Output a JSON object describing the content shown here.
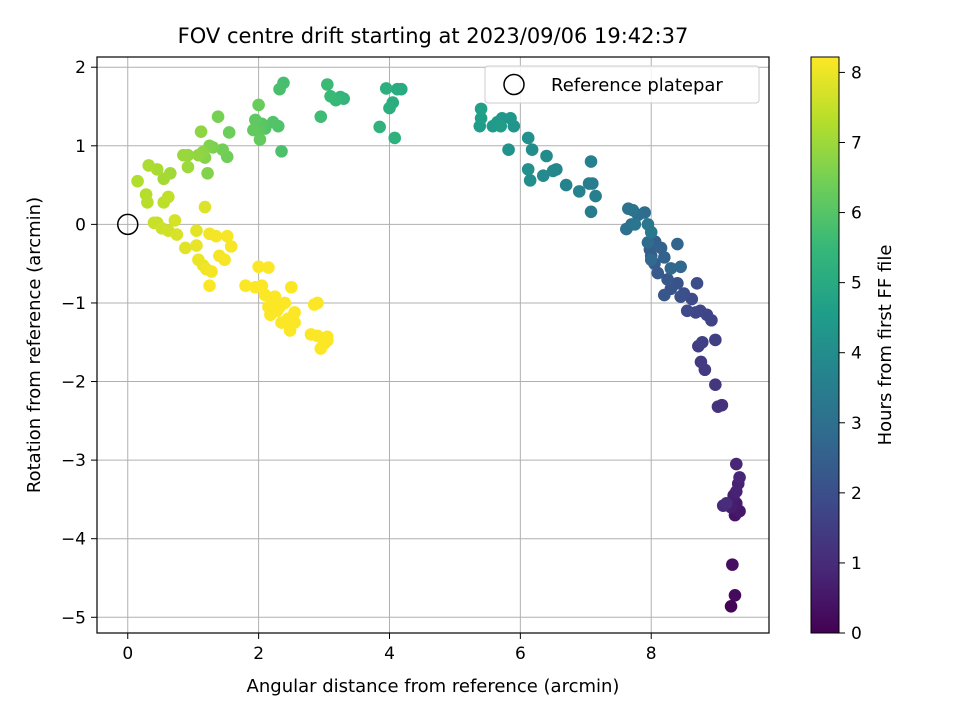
{
  "chart_data": {
    "type": "scatter",
    "title": "FOV centre drift starting at 2023/09/06 19:42:37",
    "xlabel": "Angular distance from reference (arcmin)",
    "ylabel": "Rotation from reference (arcmin)",
    "xlim": [
      -0.47,
      9.8
    ],
    "ylim": [
      -5.2,
      2.13
    ],
    "xticks": [
      0,
      2,
      4,
      6,
      8
    ],
    "yticks": [
      -5,
      -4,
      -3,
      -2,
      -1,
      0,
      1,
      2
    ],
    "xtick_labels": [
      "0",
      "2",
      "4",
      "6",
      "8"
    ],
    "ytick_labels": [
      "−5",
      "−4",
      "−3",
      "−2",
      "−1",
      "0",
      "1",
      "2"
    ],
    "grid": true,
    "legend": {
      "placement": "top-right",
      "entries": [
        "Reference platepar"
      ]
    },
    "reference_point": {
      "x": 0,
      "y": 0
    },
    "colorbar": {
      "label": "Hours from first FF file",
      "range": [
        0,
        8.22
      ],
      "ticks": [
        0,
        1,
        2,
        3,
        4,
        5,
        6,
        7,
        8
      ],
      "tick_labels": [
        "0",
        "1",
        "2",
        "3",
        "4",
        "5",
        "6",
        "7",
        "8"
      ],
      "colormap": "viridis"
    },
    "colormap_stops": [
      "#440154",
      "#482878",
      "#3e4989",
      "#31688e",
      "#26828e",
      "#1f9e89",
      "#35b779",
      "#6ece58",
      "#b5de2b",
      "#fde725"
    ],
    "points": [
      [
        9.22,
        -4.86,
        0.1
      ],
      [
        9.28,
        -4.72,
        0.2
      ],
      [
        9.24,
        -4.33,
        0.3
      ],
      [
        9.28,
        -3.7,
        0.45
      ],
      [
        9.35,
        -3.65,
        0.55
      ],
      [
        9.3,
        -3.55,
        0.6
      ],
      [
        9.22,
        -3.6,
        0.65
      ],
      [
        9.26,
        -3.45,
        0.7
      ],
      [
        9.33,
        -3.3,
        0.75
      ],
      [
        9.3,
        -3.4,
        0.8
      ],
      [
        9.35,
        -3.22,
        0.85
      ],
      [
        9.3,
        -3.05,
        0.9
      ],
      [
        9.1,
        -3.58,
        1.0
      ],
      [
        9.15,
        -3.55,
        1.05
      ],
      [
        9.08,
        -2.3,
        1.15
      ],
      [
        9.02,
        -2.32,
        1.2
      ],
      [
        8.98,
        -2.04,
        1.3
      ],
      [
        8.82,
        -1.85,
        1.4
      ],
      [
        8.76,
        -1.75,
        1.45
      ],
      [
        8.72,
        -1.55,
        1.5
      ],
      [
        8.98,
        -1.47,
        1.55
      ],
      [
        8.78,
        -1.5,
        1.6
      ],
      [
        8.92,
        -1.22,
        1.65
      ],
      [
        8.85,
        -1.15,
        1.7
      ],
      [
        8.75,
        -1.1,
        1.75
      ],
      [
        8.68,
        -1.12,
        1.8
      ],
      [
        8.55,
        -1.1,
        1.85
      ],
      [
        8.62,
        -0.95,
        1.9
      ],
      [
        8.7,
        -0.75,
        1.95
      ],
      [
        8.5,
        -0.88,
        2.0
      ],
      [
        8.45,
        -0.92,
        2.05
      ],
      [
        8.4,
        -0.75,
        2.1
      ],
      [
        8.3,
        -0.82,
        2.15
      ],
      [
        8.2,
        -0.9,
        2.2
      ],
      [
        8.25,
        -0.7,
        2.25
      ],
      [
        8.1,
        -0.62,
        2.3
      ],
      [
        8.05,
        -0.5,
        2.35
      ],
      [
        8.0,
        -0.4,
        2.4
      ],
      [
        7.98,
        -0.32,
        2.45
      ],
      [
        8.06,
        -0.22,
        2.5
      ],
      [
        8.15,
        -0.3,
        2.55
      ],
      [
        8.2,
        -0.42,
        2.6
      ],
      [
        8.4,
        -0.25,
        2.65
      ],
      [
        8.45,
        -0.54,
        2.7
      ],
      [
        8.3,
        -0.56,
        2.75
      ],
      [
        8.0,
        -0.45,
        2.8
      ],
      [
        7.95,
        -0.23,
        2.85
      ],
      [
        7.9,
        0.15,
        2.9
      ],
      [
        7.8,
        0.12,
        2.95
      ],
      [
        7.7,
        0.0,
        3.0
      ],
      [
        7.62,
        -0.06,
        3.05
      ],
      [
        7.65,
        0.2,
        3.1
      ],
      [
        7.72,
        0.18,
        3.15
      ],
      [
        7.75,
        0.0,
        3.2
      ],
      [
        7.95,
        0.0,
        3.25
      ],
      [
        8.0,
        -0.1,
        3.3
      ],
      [
        7.08,
        0.16,
        3.4
      ],
      [
        7.05,
        0.52,
        3.45
      ],
      [
        7.1,
        0.52,
        3.5
      ],
      [
        7.15,
        0.36,
        3.55
      ],
      [
        7.08,
        0.8,
        3.6
      ],
      [
        6.9,
        0.42,
        3.65
      ],
      [
        6.7,
        0.5,
        3.7
      ],
      [
        6.55,
        0.7,
        3.8
      ],
      [
        6.5,
        0.68,
        3.85
      ],
      [
        6.35,
        0.62,
        3.9
      ],
      [
        6.4,
        0.87,
        3.95
      ],
      [
        6.18,
        0.95,
        4.0
      ],
      [
        6.15,
        0.56,
        4.05
      ],
      [
        6.12,
        0.7,
        4.1
      ],
      [
        6.12,
        1.1,
        4.15
      ],
      [
        5.82,
        0.95,
        4.2
      ],
      [
        5.9,
        1.25,
        4.25
      ],
      [
        5.85,
        1.35,
        4.3
      ],
      [
        5.72,
        1.35,
        4.35
      ],
      [
        5.65,
        1.3,
        4.4
      ],
      [
        5.58,
        1.25,
        4.45
      ],
      [
        5.7,
        1.25,
        4.5
      ],
      [
        5.38,
        1.25,
        4.55
      ],
      [
        5.4,
        1.35,
        4.6
      ],
      [
        5.4,
        1.47,
        4.65
      ],
      [
        4.18,
        1.72,
        5.0
      ],
      [
        4.12,
        1.72,
        5.05
      ],
      [
        4.05,
        1.55,
        5.1
      ],
      [
        4.0,
        1.48,
        5.15
      ],
      [
        3.95,
        1.73,
        5.2
      ],
      [
        4.08,
        1.1,
        5.25
      ],
      [
        3.85,
        1.24,
        5.3
      ],
      [
        3.3,
        1.6,
        5.4
      ],
      [
        3.25,
        1.62,
        5.45
      ],
      [
        3.18,
        1.58,
        5.5
      ],
      [
        3.1,
        1.63,
        5.55
      ],
      [
        3.05,
        1.78,
        5.6
      ],
      [
        2.95,
        1.37,
        5.65
      ],
      [
        2.38,
        1.8,
        5.75
      ],
      [
        2.32,
        1.72,
        5.8
      ],
      [
        2.35,
        0.93,
        5.85
      ],
      [
        2.3,
        1.25,
        5.9
      ],
      [
        2.22,
        1.3,
        5.95
      ],
      [
        2.1,
        1.22,
        6.0
      ],
      [
        2.05,
        1.28,
        6.05
      ],
      [
        2.0,
        1.2,
        6.1
      ],
      [
        1.95,
        1.33,
        6.15
      ],
      [
        1.92,
        1.2,
        6.2
      ],
      [
        2.02,
        1.08,
        6.25
      ],
      [
        2.0,
        1.52,
        6.3
      ],
      [
        1.55,
        1.17,
        6.35
      ],
      [
        1.52,
        0.86,
        6.4
      ],
      [
        1.45,
        0.95,
        6.45
      ],
      [
        1.38,
        1.37,
        6.5
      ],
      [
        1.3,
        0.98,
        6.55
      ],
      [
        1.25,
        1.0,
        6.6
      ],
      [
        1.22,
        0.65,
        6.65
      ],
      [
        1.18,
        0.85,
        6.7
      ],
      [
        1.15,
        0.92,
        6.75
      ],
      [
        1.12,
        1.18,
        6.8
      ],
      [
        1.08,
        0.88,
        6.85
      ],
      [
        0.92,
        0.88,
        6.9
      ],
      [
        0.85,
        0.88,
        6.95
      ],
      [
        0.92,
        0.73,
        7.0
      ],
      [
        0.65,
        0.65,
        7.05
      ],
      [
        0.55,
        0.58,
        7.1
      ],
      [
        0.45,
        0.7,
        7.15
      ],
      [
        0.32,
        0.75,
        7.2
      ],
      [
        0.15,
        0.55,
        7.25
      ],
      [
        0.28,
        0.38,
        7.3
      ],
      [
        0.3,
        0.28,
        7.35
      ],
      [
        0.55,
        0.28,
        7.4
      ],
      [
        0.62,
        0.35,
        7.45
      ],
      [
        0.45,
        0.02,
        7.5
      ],
      [
        0.4,
        0.02,
        7.55
      ],
      [
        0.52,
        -0.05,
        7.6
      ],
      [
        0.62,
        -0.08,
        7.65
      ],
      [
        0.72,
        0.05,
        7.7
      ],
      [
        0.75,
        -0.13,
        7.75
      ],
      [
        1.18,
        0.22,
        7.8
      ],
      [
        0.88,
        -0.3,
        7.85
      ],
      [
        1.05,
        -0.08,
        7.9
      ],
      [
        1.05,
        -0.27,
        7.95
      ],
      [
        1.08,
        -0.45,
        8.0
      ],
      [
        1.15,
        -0.52,
        8.0
      ],
      [
        1.2,
        -0.57,
        8.05
      ],
      [
        1.25,
        -0.12,
        8.05
      ],
      [
        1.28,
        -0.6,
        8.1
      ],
      [
        1.35,
        -0.15,
        8.1
      ],
      [
        1.4,
        -0.4,
        8.1
      ],
      [
        1.48,
        -0.45,
        8.15
      ],
      [
        1.52,
        -0.15,
        8.15
      ],
      [
        1.58,
        -0.28,
        8.15
      ],
      [
        1.25,
        -0.78,
        8.2
      ],
      [
        1.8,
        -0.78,
        8.2
      ],
      [
        1.95,
        -0.8,
        8.2
      ],
      [
        2.05,
        -0.78,
        8.2
      ],
      [
        2.0,
        -0.54,
        8.2
      ],
      [
        2.15,
        -0.55,
        8.2
      ],
      [
        2.1,
        -0.9,
        8.2
      ],
      [
        2.15,
        -1.05,
        8.2
      ],
      [
        2.18,
        -1.15,
        8.2
      ],
      [
        2.22,
        -1.02,
        8.2
      ],
      [
        2.25,
        -0.92,
        8.2
      ],
      [
        2.28,
        -1.1,
        8.2
      ],
      [
        2.32,
        -1.05,
        8.2
      ],
      [
        2.35,
        -1.25,
        8.2
      ],
      [
        2.4,
        -1.0,
        8.2
      ],
      [
        2.45,
        -1.2,
        8.2
      ],
      [
        2.48,
        -1.35,
        8.2
      ],
      [
        2.5,
        -0.8,
        8.2
      ],
      [
        2.55,
        -1.12,
        8.2
      ],
      [
        2.55,
        -1.25,
        8.2
      ],
      [
        2.85,
        -1.02,
        8.2
      ],
      [
        2.9,
        -1.0,
        8.2
      ],
      [
        2.8,
        -1.4,
        8.2
      ],
      [
        2.9,
        -1.42,
        8.2
      ],
      [
        2.95,
        -1.58,
        8.2
      ],
      [
        3.0,
        -1.52,
        8.2
      ],
      [
        3.05,
        -1.48,
        8.2
      ],
      [
        3.05,
        -1.43,
        8.2
      ]
    ]
  }
}
